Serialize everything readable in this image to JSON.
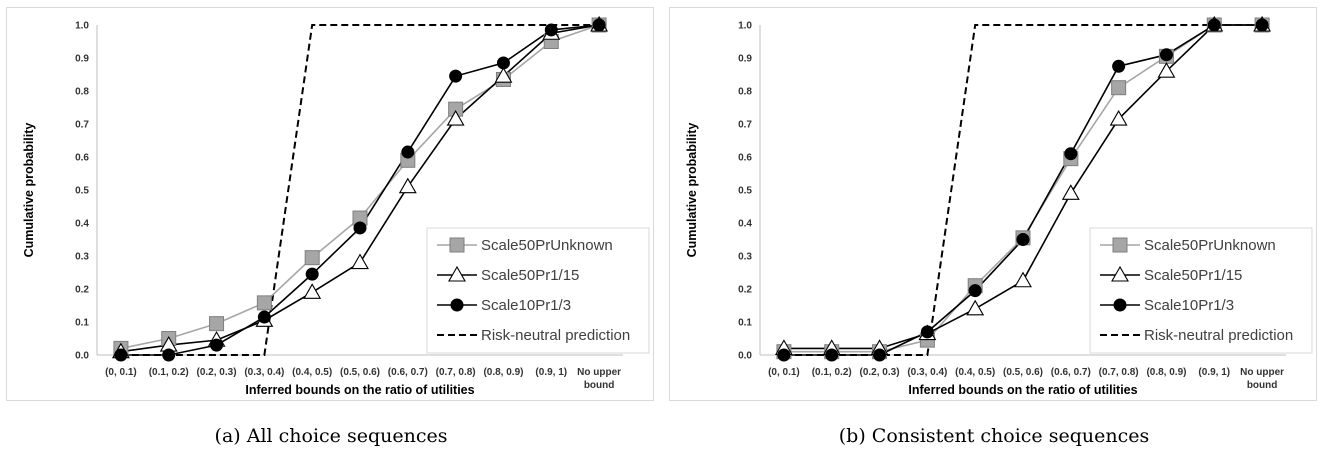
{
  "panels": [
    {
      "caption": "(a) All choice sequences",
      "chart_data": {
        "type": "line",
        "ylabel": "Cumulative probability",
        "xlabel": "Inferred bounds on the ratio of utilities",
        "ylim": [
          0,
          1.0
        ],
        "yticks": [
          "0.0",
          "0.1",
          "0.2",
          "0.3",
          "0.4",
          "0.5",
          "0.6",
          "0.7",
          "0.8",
          "0.9",
          "1.0"
        ],
        "categories": [
          "(0, 0.1)",
          "(0.1, 0.2)",
          "(0.2, 0.3)",
          "(0.3, 0.4)",
          "(0.4, 0.5)",
          "(0.5, 0.6)",
          "(0.6, 0.7)",
          "(0.7, 0.8)",
          "(0.8, 0.9)",
          "(0.9, 1)",
          "No upper bound"
        ],
        "legend_position": "bottom-right",
        "series": [
          {
            "name": "Scale50PrUnknown",
            "marker": "square",
            "color": "#a6a6a6",
            "line_color": "#a6a6a6",
            "values": [
              0.02,
              0.05,
              0.095,
              0.158,
              0.295,
              0.415,
              0.59,
              0.745,
              0.835,
              0.95,
              1.0
            ]
          },
          {
            "name": "Scale50Pr1/15",
            "marker": "triangle",
            "color": "#ffffff",
            "line_color": "#000000",
            "values": [
              0.01,
              0.03,
              0.045,
              0.105,
              0.19,
              0.28,
              0.51,
              0.715,
              0.845,
              0.975,
              1.0
            ]
          },
          {
            "name": "Scale10Pr1/3",
            "marker": "circle",
            "color": "#000000",
            "line_color": "#000000",
            "values": [
              0.0,
              0.0,
              0.03,
              0.115,
              0.245,
              0.385,
              0.615,
              0.845,
              0.885,
              0.985,
              1.0
            ]
          },
          {
            "name": "Risk-neutral prediction",
            "marker": "none",
            "color": "#000000",
            "line_color": "#000000",
            "dashed": true,
            "values": [
              0.0,
              0.0,
              0.0,
              0.0,
              1.0,
              1.0,
              1.0,
              1.0,
              1.0,
              1.0,
              1.0
            ]
          }
        ]
      }
    },
    {
      "caption": "(b) Consistent choice sequences",
      "chart_data": {
        "type": "line",
        "ylabel": "Cumulative probability",
        "xlabel": "Inferred bounds on the ratio of utilities",
        "ylim": [
          0,
          1.0
        ],
        "yticks": [
          "0.0",
          "0.1",
          "0.2",
          "0.3",
          "0.4",
          "0.5",
          "0.6",
          "0.7",
          "0.8",
          "0.9",
          "1.0"
        ],
        "categories": [
          "(0, 0.1)",
          "(0.1, 0.2)",
          "(0.2, 0.3)",
          "(0.3, 0.4)",
          "(0.4, 0.5)",
          "(0.5, 0.6)",
          "(0.6, 0.7)",
          "(0.7, 0.8)",
          "(0.8, 0.9)",
          "(0.9, 1)",
          "No upper bound"
        ],
        "legend_position": "bottom-right",
        "series": [
          {
            "name": "Scale50PrUnknown",
            "marker": "square",
            "color": "#a6a6a6",
            "line_color": "#a6a6a6",
            "values": [
              0.01,
              0.01,
              0.01,
              0.045,
              0.21,
              0.355,
              0.595,
              0.81,
              0.905,
              1.0,
              1.0
            ]
          },
          {
            "name": "Scale50Pr1/15",
            "marker": "triangle",
            "color": "#ffffff",
            "line_color": "#000000",
            "values": [
              0.02,
              0.02,
              0.02,
              0.065,
              0.14,
              0.225,
              0.49,
              0.715,
              0.86,
              1.0,
              1.0
            ]
          },
          {
            "name": "Scale10Pr1/3",
            "marker": "circle",
            "color": "#000000",
            "line_color": "#000000",
            "values": [
              0.0,
              0.0,
              0.0,
              0.07,
              0.195,
              0.35,
              0.61,
              0.875,
              0.91,
              1.0,
              1.0
            ]
          },
          {
            "name": "Risk-neutral prediction",
            "marker": "none",
            "color": "#000000",
            "line_color": "#000000",
            "dashed": true,
            "values": [
              0.0,
              0.0,
              0.0,
              0.0,
              1.0,
              1.0,
              1.0,
              1.0,
              1.0,
              1.0,
              1.0
            ]
          }
        ]
      }
    }
  ]
}
